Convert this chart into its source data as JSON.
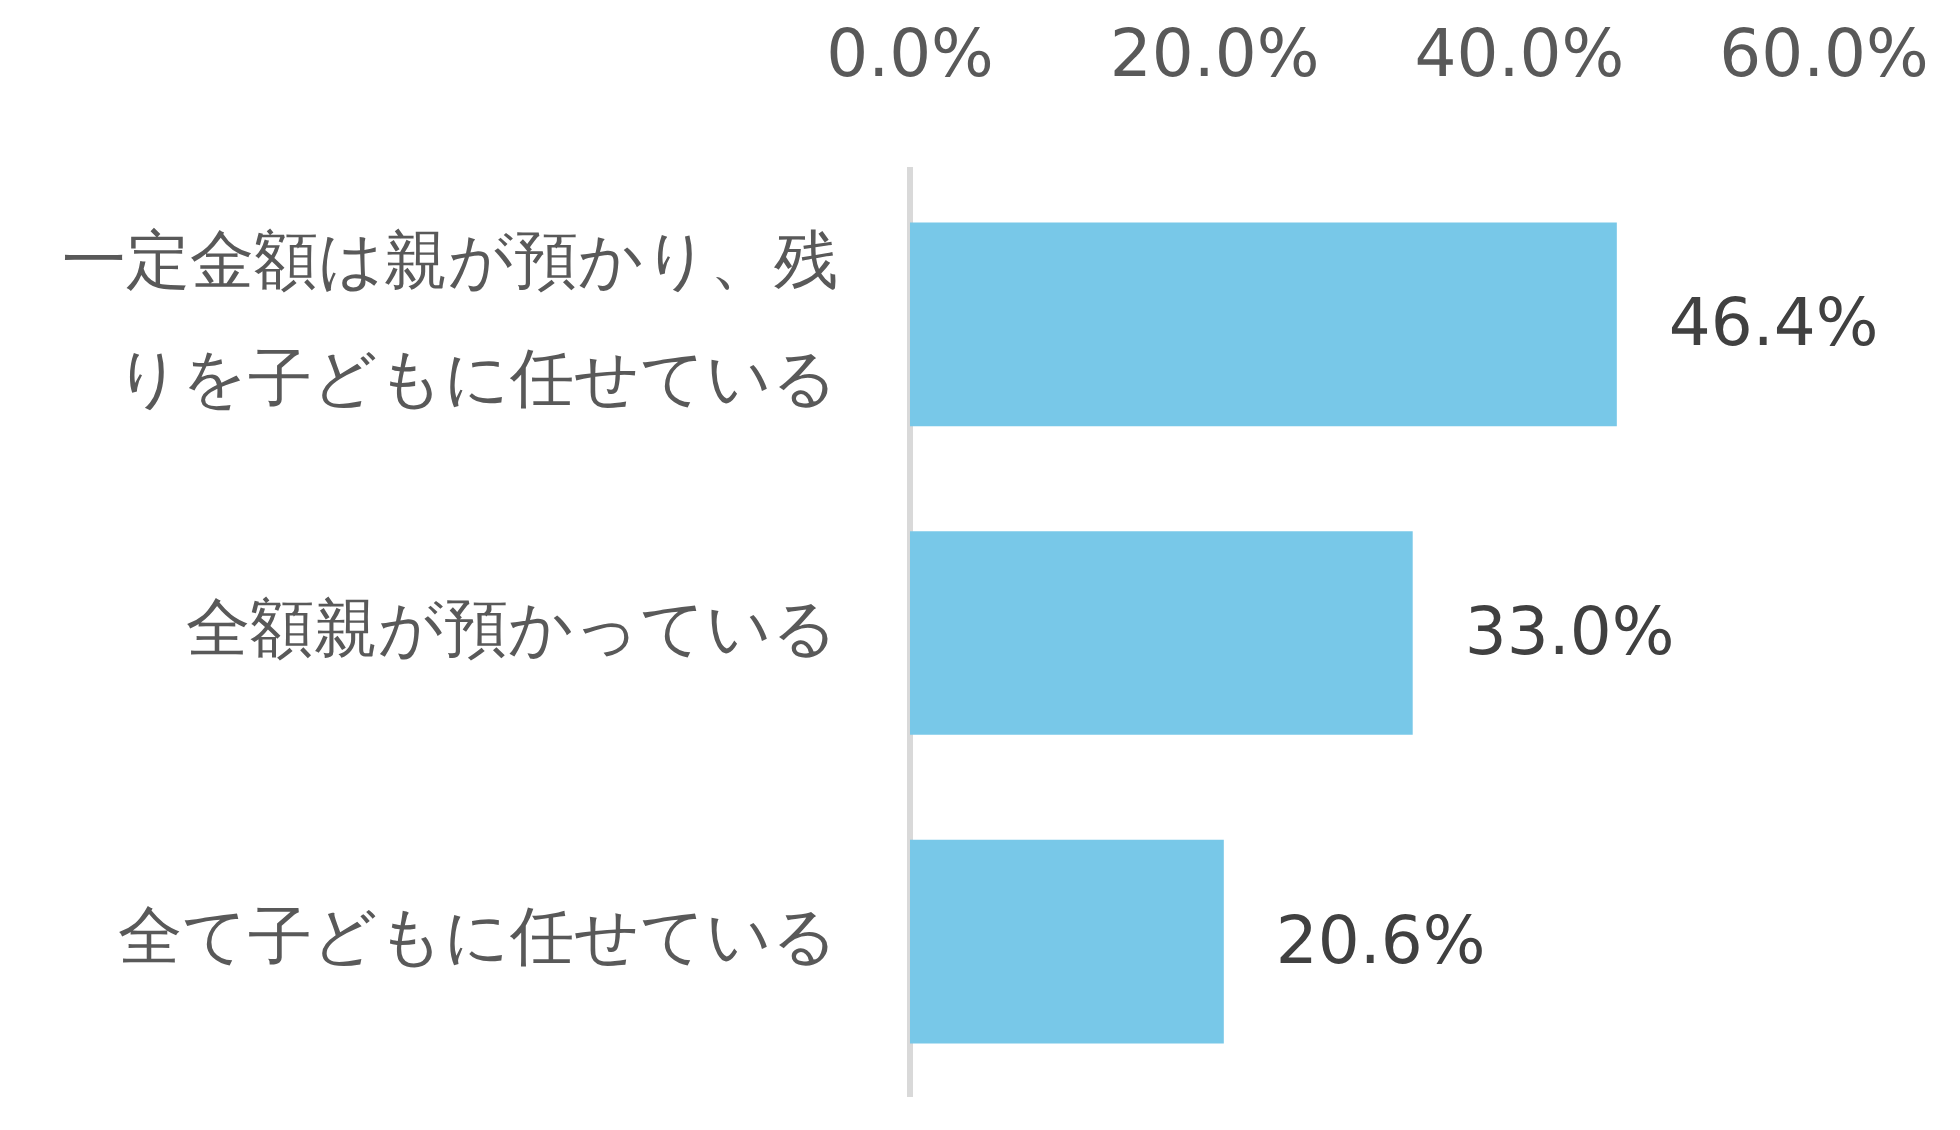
{
  "chart_data": {
    "type": "bar",
    "orientation": "horizontal",
    "categories": [
      "一定金額は親が預かり、残りを子どもに任せている",
      "全額親が預かっている",
      "全て子どもに任せている"
    ],
    "values": [
      46.4,
      33.0,
      20.6
    ],
    "value_labels": [
      "46.4%",
      "33.0%",
      "20.6%"
    ],
    "color": "#78c8e8",
    "xlim": [
      0,
      60
    ],
    "xticks": [
      {
        "value": 0,
        "label": "0.0%"
      },
      {
        "value": 20,
        "label": "20.0%"
      },
      {
        "value": 40,
        "label": "40.0%"
      },
      {
        "value": 60,
        "label": "60.0%"
      }
    ],
    "grid": false,
    "legend": false
  }
}
